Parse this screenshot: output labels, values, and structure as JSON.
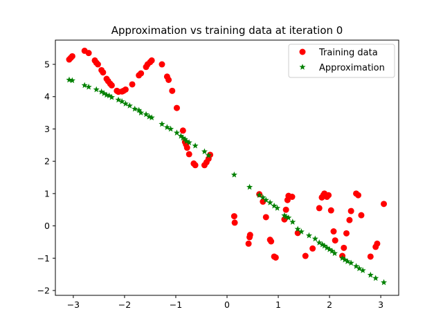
{
  "chart_data": {
    "type": "scatter",
    "title": "Approximation vs training data at iteration 0",
    "xlabel": "",
    "ylabel": "",
    "xlim": [
      -3.35,
      3.35
    ],
    "ylim": [
      -2.15,
      5.75
    ],
    "xticks": [
      -3,
      -2,
      -1,
      0,
      1,
      2,
      3
    ],
    "yticks": [
      -2,
      -1,
      0,
      1,
      2,
      3,
      4,
      5
    ],
    "xtick_labels": [
      "−3",
      "−2",
      "−1",
      "0",
      "1",
      "2",
      "3"
    ],
    "ytick_labels": [
      "−2",
      "−1",
      "0",
      "1",
      "2",
      "3",
      "4",
      "5"
    ],
    "grid": false,
    "legend_position": "top-right",
    "series": [
      {
        "name": "Training data",
        "marker": "circle",
        "color": "#ff0000",
        "x": [
          -3.08,
          -3.05,
          -3.02,
          -2.78,
          -2.7,
          -2.58,
          -2.55,
          -2.52,
          -2.45,
          -2.42,
          -2.35,
          -2.32,
          -2.28,
          -2.25,
          -2.15,
          -2.12,
          -2.05,
          -2.02,
          -1.98,
          -1.85,
          -1.72,
          -1.68,
          -1.58,
          -1.55,
          -1.5,
          -1.47,
          -1.27,
          -1.17,
          -1.14,
          -1.07,
          -0.98,
          -0.86,
          -0.82,
          -0.8,
          -0.78,
          -0.74,
          -0.65,
          -0.62,
          -0.44,
          -0.4,
          -0.36,
          -0.33,
          0.14,
          0.15,
          0.42,
          0.44,
          0.45,
          0.63,
          0.7,
          0.76,
          0.84,
          0.86,
          0.92,
          0.95,
          1.12,
          1.15,
          1.18,
          1.2,
          1.27,
          1.38,
          1.53,
          1.67,
          1.8,
          1.85,
          1.88,
          1.9,
          1.95,
          1.98,
          2.03,
          2.08,
          2.11,
          2.25,
          2.28,
          2.33,
          2.39,
          2.42,
          2.52,
          2.56,
          2.62,
          2.8,
          2.9,
          2.93,
          3.06
        ],
        "y": [
          5.15,
          5.2,
          5.25,
          5.42,
          5.35,
          5.12,
          5.05,
          5.0,
          4.82,
          4.75,
          4.55,
          4.48,
          4.4,
          4.35,
          4.18,
          4.15,
          4.16,
          4.18,
          4.22,
          4.38,
          4.66,
          4.72,
          4.92,
          5.0,
          5.07,
          5.12,
          5.0,
          4.62,
          4.52,
          4.18,
          3.65,
          2.95,
          2.6,
          2.52,
          2.42,
          2.22,
          1.93,
          1.88,
          1.88,
          1.97,
          2.08,
          2.2,
          0.3,
          0.1,
          -0.55,
          -0.35,
          -0.28,
          0.98,
          0.75,
          0.27,
          -0.43,
          -0.48,
          -0.95,
          -0.98,
          0.2,
          0.5,
          0.8,
          0.93,
          0.9,
          -0.22,
          -0.93,
          -0.7,
          0.55,
          0.88,
          0.95,
          1.0,
          0.9,
          0.95,
          0.48,
          -0.17,
          -0.45,
          -0.93,
          -0.68,
          -0.23,
          0.18,
          0.46,
          1.0,
          0.95,
          0.33,
          -0.95,
          -0.65,
          -0.55,
          0.68
        ]
      },
      {
        "name": "Approximation",
        "marker": "star",
        "color": "#008000",
        "x": [
          -3.08,
          -3.02,
          -2.78,
          -2.7,
          -2.55,
          -2.45,
          -2.4,
          -2.35,
          -2.3,
          -2.25,
          -2.12,
          -2.05,
          -1.98,
          -1.9,
          -1.8,
          -1.72,
          -1.68,
          -1.58,
          -1.52,
          -1.47,
          -1.27,
          -1.17,
          -1.1,
          -0.98,
          -0.9,
          -0.86,
          -0.82,
          -0.79,
          -0.74,
          -0.62,
          -0.44,
          -0.36,
          0.14,
          0.44,
          0.63,
          0.7,
          0.76,
          0.84,
          0.92,
          0.98,
          1.12,
          1.15,
          1.2,
          1.28,
          1.38,
          1.45,
          1.6,
          1.72,
          1.8,
          1.86,
          1.9,
          1.95,
          2.0,
          2.05,
          2.1,
          2.25,
          2.3,
          2.35,
          2.42,
          2.52,
          2.58,
          2.65,
          2.8,
          2.9,
          3.06
        ],
        "y": [
          4.52,
          4.5,
          4.35,
          4.3,
          4.22,
          4.15,
          4.1,
          4.05,
          4.03,
          3.98,
          3.9,
          3.85,
          3.78,
          3.72,
          3.62,
          3.58,
          3.5,
          3.45,
          3.38,
          3.35,
          3.15,
          3.05,
          3.0,
          2.88,
          2.78,
          2.72,
          2.68,
          2.62,
          2.58,
          2.48,
          2.3,
          2.18,
          1.58,
          1.2,
          0.95,
          0.88,
          0.8,
          0.72,
          0.62,
          0.55,
          0.32,
          0.28,
          0.25,
          0.12,
          -0.1,
          -0.18,
          -0.3,
          -0.4,
          -0.52,
          -0.58,
          -0.62,
          -0.68,
          -0.73,
          -0.78,
          -0.85,
          -1.0,
          -1.05,
          -1.1,
          -1.15,
          -1.25,
          -1.32,
          -1.38,
          -1.52,
          -1.62,
          -1.75
        ]
      }
    ]
  }
}
